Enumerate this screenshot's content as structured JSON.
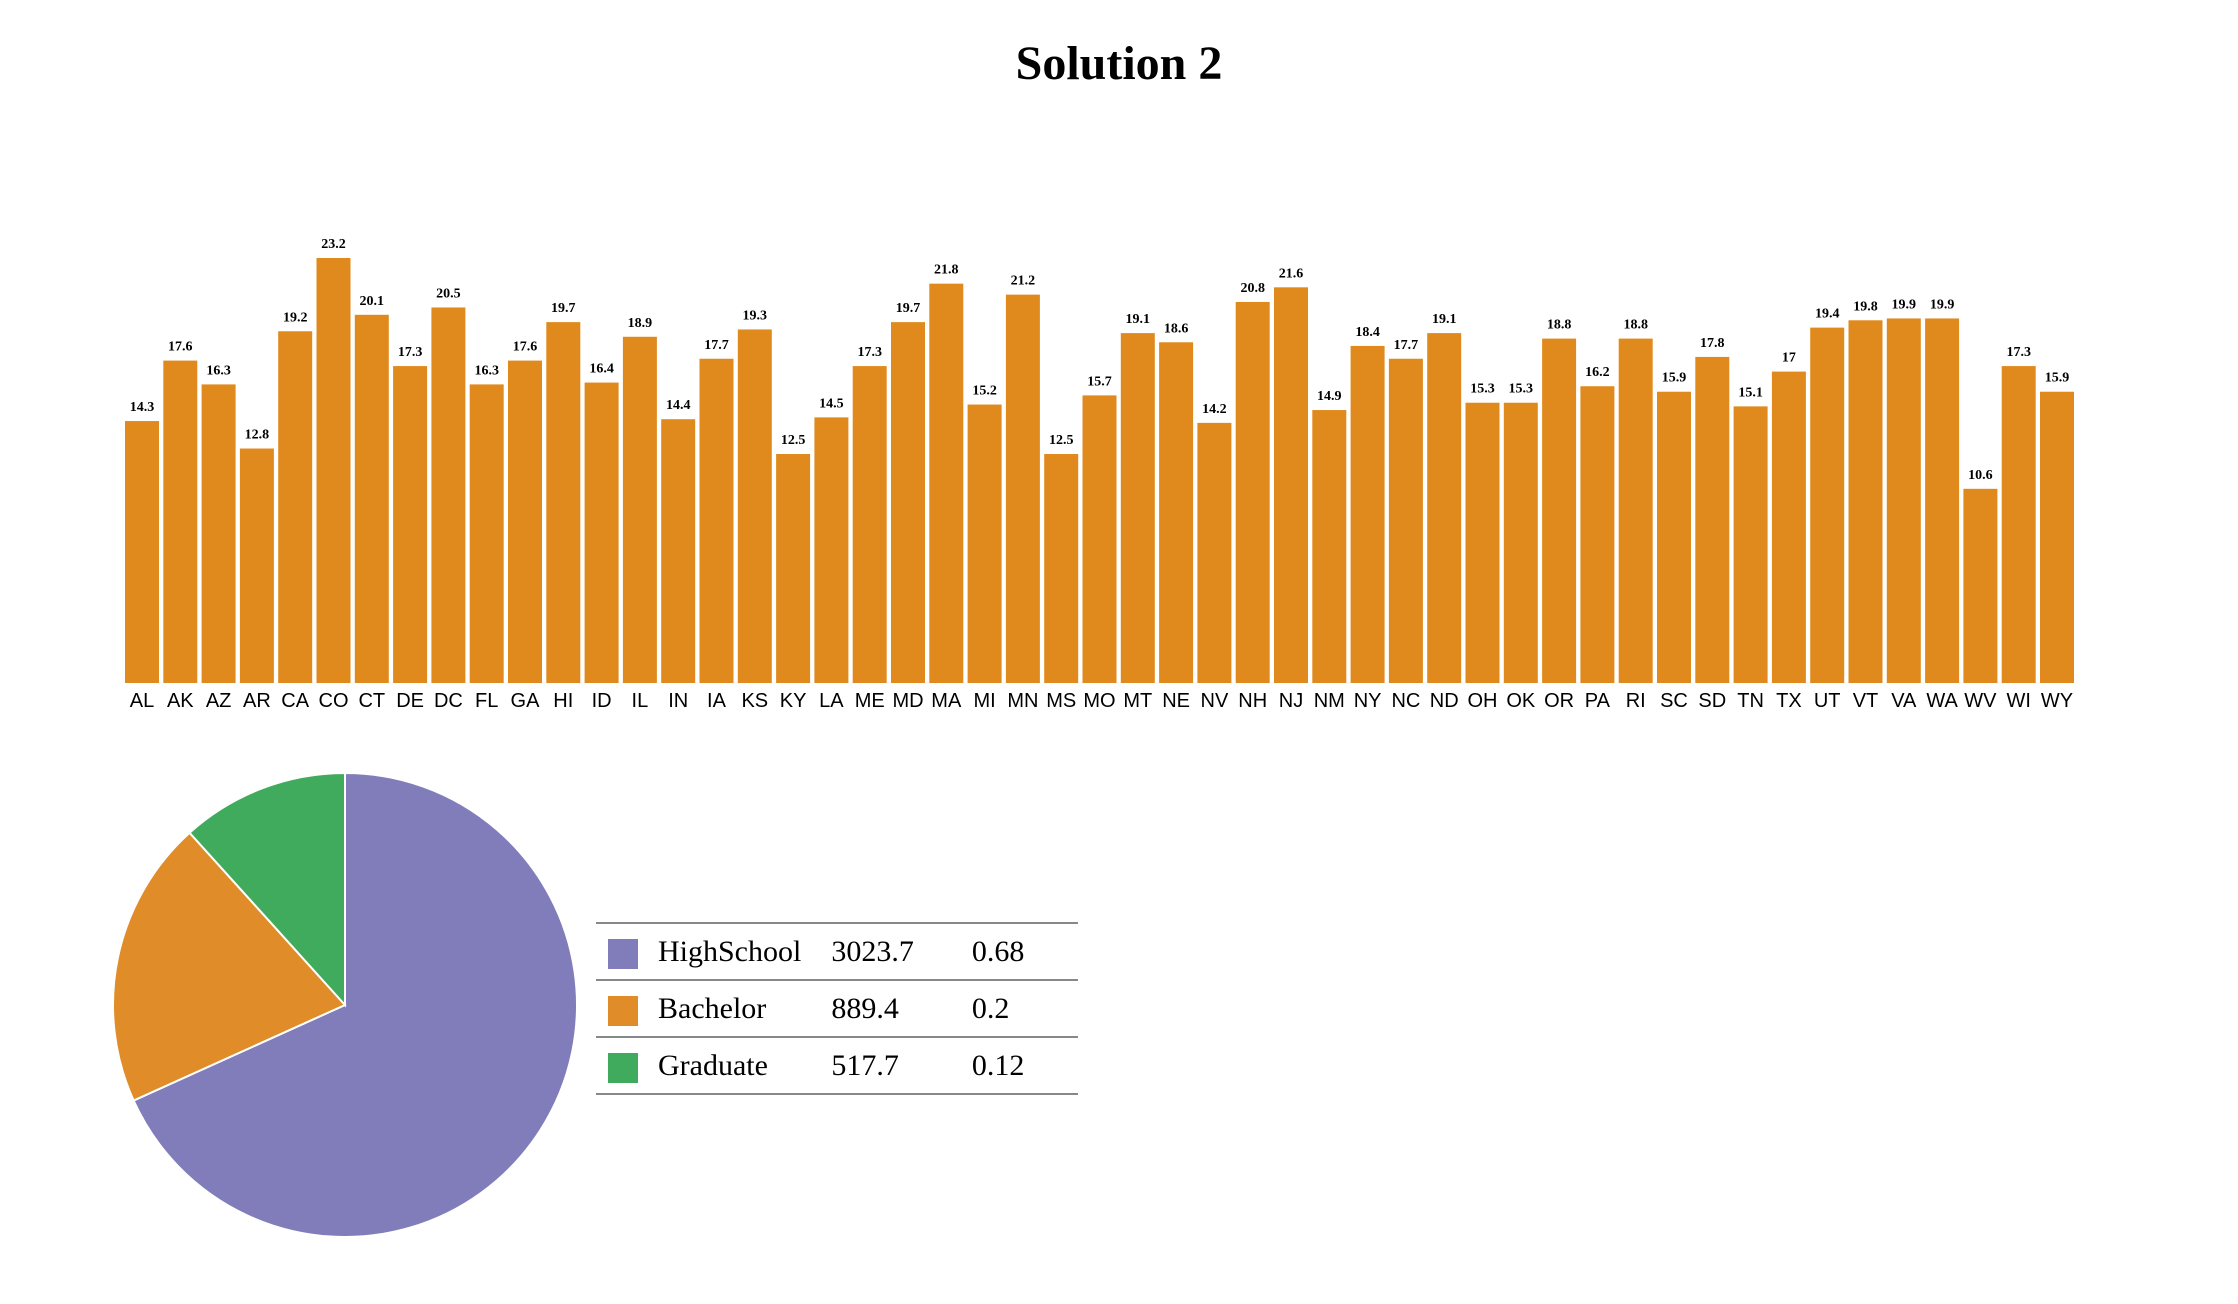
{
  "page": {
    "title": "Solution 2"
  },
  "colors": {
    "bar": "#E08A1E",
    "highschool": "#807DBA",
    "bachelor": "#E08D29",
    "graduate": "#41AB5D"
  },
  "chart_data": [
    {
      "type": "bar",
      "title": "",
      "xlabel": "",
      "ylabel": "",
      "ylim": [
        0,
        23.2
      ],
      "grid": false,
      "categories": [
        "AL",
        "AK",
        "AZ",
        "AR",
        "CA",
        "CO",
        "CT",
        "DE",
        "DC",
        "FL",
        "GA",
        "HI",
        "ID",
        "IL",
        "IN",
        "IA",
        "KS",
        "KY",
        "LA",
        "ME",
        "MD",
        "MA",
        "MI",
        "MN",
        "MS",
        "MO",
        "MT",
        "NE",
        "NV",
        "NH",
        "NJ",
        "NM",
        "NY",
        "NC",
        "ND",
        "OH",
        "OK",
        "OR",
        "PA",
        "RI",
        "SC",
        "SD",
        "TN",
        "TX",
        "UT",
        "VT",
        "VA",
        "WA",
        "WV",
        "WI",
        "WY"
      ],
      "values": [
        14.3,
        17.6,
        16.3,
        12.8,
        19.2,
        23.2,
        20.1,
        17.3,
        20.5,
        16.3,
        17.6,
        19.7,
        16.4,
        18.9,
        14.4,
        17.7,
        19.3,
        12.5,
        14.5,
        17.3,
        19.7,
        21.8,
        15.2,
        21.2,
        12.5,
        15.7,
        19.1,
        18.6,
        14.2,
        20.8,
        21.6,
        14.9,
        18.4,
        17.7,
        19.1,
        15.3,
        15.3,
        18.8,
        16.2,
        18.8,
        15.9,
        17.8,
        15.1,
        17,
        19.4,
        19.8,
        19.9,
        19.9,
        10.6,
        17.3,
        15.9
      ]
    },
    {
      "type": "pie",
      "title": "",
      "legend_placement": "right",
      "slices": [
        {
          "label": "HighSchool",
          "value": 3023.7,
          "share": "0.68",
          "color_key": "highschool"
        },
        {
          "label": "Bachelor",
          "value": 889.4,
          "share": "0.2",
          "color_key": "bachelor"
        },
        {
          "label": "Graduate",
          "value": 517.7,
          "share": "0.12",
          "color_key": "graduate"
        }
      ]
    }
  ]
}
